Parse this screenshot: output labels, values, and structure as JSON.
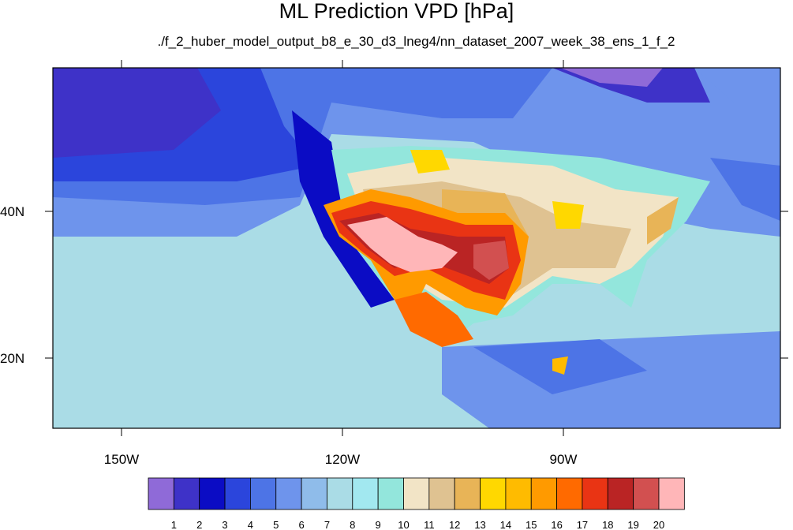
{
  "title": "ML Prediction VPD [hPa]",
  "subtitle": "./f_2_huber_model_output_b8_e_30_d3_lneg4/nn_dataset_2007_week_38_ens_1_f_2",
  "map": {
    "lon_labels": [
      "150W",
      "120W",
      "90W"
    ],
    "lat_labels": [
      "40N",
      "20N"
    ]
  },
  "colorbar": {
    "labels": [
      "1",
      "2",
      "3",
      "4",
      "5",
      "6",
      "7",
      "8",
      "9",
      "10",
      "11",
      "12",
      "13",
      "14",
      "15",
      "16",
      "17",
      "18",
      "19",
      "20"
    ],
    "colors": [
      "#8f6ad8",
      "#3e32c8",
      "#0b0cc4",
      "#2b45dc",
      "#4d74e6",
      "#6e94ec",
      "#8fbcea",
      "#aadce6",
      "#a2e8f0",
      "#93e6dc",
      "#f2e4c6",
      "#dfc291",
      "#e8b457",
      "#ffd800",
      "#ffbb00",
      "#ff9a00",
      "#ff6a00",
      "#e93414",
      "#ba2424",
      "#d25050",
      "#ffb6b8"
    ]
  }
}
